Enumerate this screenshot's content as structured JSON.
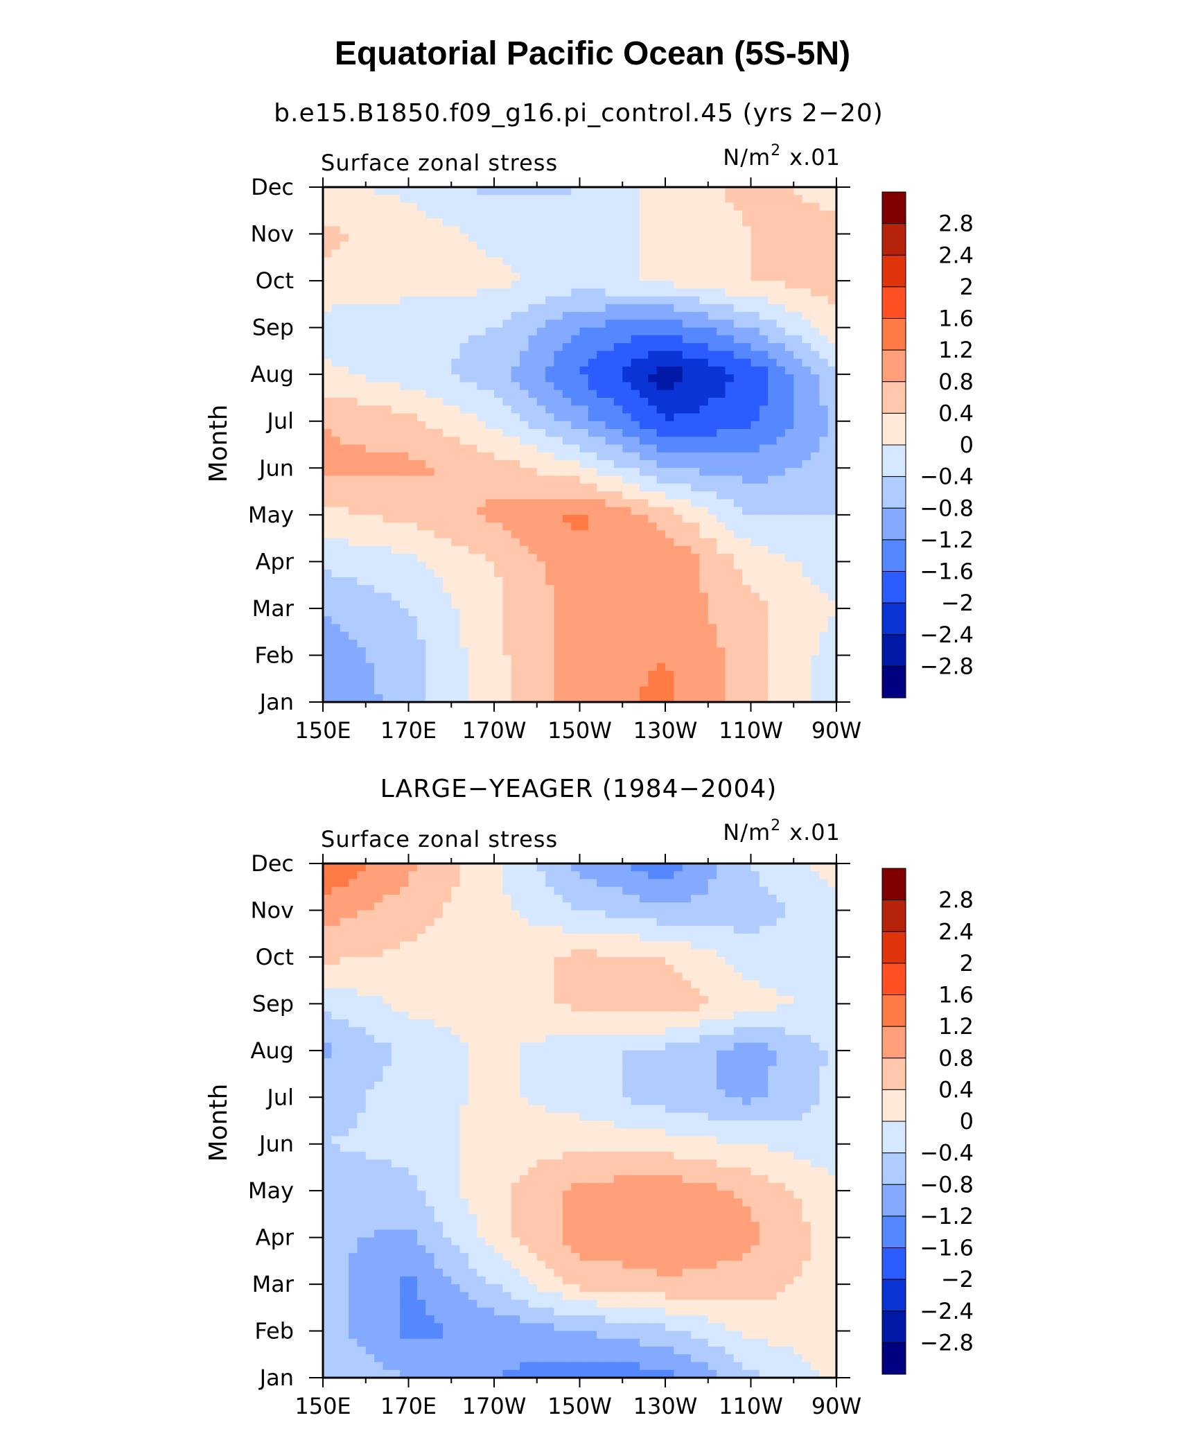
{
  "figure": {
    "title": "Equatorial Pacific Ocean (5S-5N)"
  },
  "colorbar": {
    "levels": [
      "2.8",
      "2.4",
      "2",
      "1.6",
      "1.2",
      "0.8",
      "0.4",
      "0",
      "−0.4",
      "−0.8",
      "−1.2",
      "−1.6",
      "−2",
      "−2.4",
      "−2.8"
    ],
    "colors": [
      "#800000",
      "#b5230a",
      "#e0350c",
      "#ff5024",
      "#ff7a45",
      "#ffa07a",
      "#ffc8ad",
      "#ffe9d8",
      "#d6e8ff",
      "#b0ccff",
      "#84aaff",
      "#5587ff",
      "#2a5cff",
      "#0b34d6",
      "#0019a6",
      "#000080"
    ]
  },
  "panels": [
    {
      "title": "b.e15.B1850.f09_g16.pi_control.45 (yrs 2−20)",
      "left_label": "Surface zonal stress",
      "units_label": "N/m",
      "units_sup": "2",
      "units_scale": "x.01",
      "ylabel": "Month"
    },
    {
      "title": "LARGE−YEAGER (1984−2004)",
      "left_label": "Surface zonal stress",
      "units_label": "N/m",
      "units_sup": "2",
      "units_scale": "x.01",
      "ylabel": "Month"
    }
  ],
  "axes": {
    "x_ticks": [
      "150E",
      "170E",
      "170W",
      "150W",
      "130W",
      "110W",
      "90W"
    ],
    "y_ticks": [
      "Jan",
      "Feb",
      "Mar",
      "Apr",
      "May",
      "Jun",
      "Jul",
      "Aug",
      "Sep",
      "Oct",
      "Nov",
      "Dec"
    ]
  },
  "chart_data": [
    {
      "type": "heatmap",
      "title": "b.e15.B1850.f09_g16.pi_control.45 (yrs 2−20)",
      "subtitle": "Surface zonal stress",
      "units": "N/m2 x.01",
      "ylabel": "Month",
      "x": [
        "150E",
        "170E",
        "170W",
        "150W",
        "130W",
        "110W",
        "90W"
      ],
      "y": [
        "Jan",
        "Feb",
        "Mar",
        "Apr",
        "May",
        "Jun",
        "Jul",
        "Aug",
        "Sep",
        "Oct",
        "Nov",
        "Dec"
      ],
      "values": [
        [
          -1.2,
          -0.6,
          0.2,
          1.0,
          1.3,
          0.6,
          -0.2
        ],
        [
          -1.0,
          -0.6,
          0.3,
          1.0,
          1.2,
          0.6,
          -0.2
        ],
        [
          -0.8,
          -0.4,
          0.3,
          1.0,
          1.1,
          0.5,
          0.0
        ],
        [
          -0.3,
          -0.1,
          0.4,
          1.1,
          1.2,
          0.2,
          -0.2
        ],
        [
          0.3,
          0.5,
          0.9,
          1.3,
          0.6,
          -0.4,
          -0.4
        ],
        [
          0.9,
          0.9,
          0.6,
          0.1,
          -0.8,
          -1.0,
          -0.6
        ],
        [
          0.8,
          0.5,
          -0.1,
          -1.0,
          -2.0,
          -1.7,
          -0.7
        ],
        [
          0.1,
          -0.2,
          -0.6,
          -1.6,
          -2.6,
          -1.9,
          -0.5
        ],
        [
          -0.2,
          -0.3,
          -0.4,
          -1.2,
          -1.5,
          -0.8,
          0.3
        ],
        [
          0.3,
          0.2,
          0.1,
          -0.2,
          0.1,
          0.4,
          0.6
        ],
        [
          0.5,
          0.2,
          -0.1,
          -0.3,
          0.1,
          0.4,
          0.5
        ],
        [
          0.1,
          -0.1,
          -0.5,
          -0.4,
          0.2,
          0.5,
          0.3
        ]
      ],
      "levels": [
        -2.8,
        -2.4,
        -2.0,
        -1.6,
        -1.2,
        -0.8,
        -0.4,
        0.0,
        0.4,
        0.8,
        1.2,
        1.6,
        2.0,
        2.4,
        2.8
      ]
    },
    {
      "type": "heatmap",
      "title": "LARGE−YEAGER (1984−2004)",
      "subtitle": "Surface zonal stress",
      "units": "N/m2 x.01",
      "ylabel": "Month",
      "x": [
        "150E",
        "170E",
        "170W",
        "150W",
        "130W",
        "110W",
        "90W"
      ],
      "y": [
        "Jan",
        "Feb",
        "Mar",
        "Apr",
        "May",
        "Jun",
        "Jul",
        "Aug",
        "Sep",
        "Oct",
        "Nov",
        "Dec"
      ],
      "values": [
        [
          -0.5,
          -0.8,
          -1.2,
          -1.4,
          -1.4,
          -0.5,
          0.1
        ],
        [
          -0.6,
          -1.3,
          -1.1,
          -0.8,
          -0.5,
          0.1,
          0.2
        ],
        [
          -0.6,
          -1.3,
          -0.4,
          0.5,
          0.7,
          0.6,
          0.2
        ],
        [
          -0.7,
          -0.9,
          0.2,
          1.0,
          1.2,
          0.9,
          0.2
        ],
        [
          -0.6,
          -0.5,
          0.3,
          0.9,
          1.1,
          0.7,
          0.1
        ],
        [
          -0.4,
          -0.3,
          0.2,
          0.3,
          0.2,
          0.0,
          -0.3
        ],
        [
          -0.6,
          -0.2,
          0.1,
          -0.2,
          -0.6,
          -0.9,
          -0.3
        ],
        [
          -0.9,
          -0.3,
          0.1,
          -0.3,
          -0.5,
          -1.0,
          -0.3
        ],
        [
          -0.3,
          0.1,
          0.2,
          0.5,
          0.7,
          0.2,
          -0.2
        ],
        [
          0.5,
          0.3,
          0.2,
          0.5,
          0.4,
          -0.2,
          -0.2
        ],
        [
          1.0,
          0.6,
          0.1,
          -0.4,
          -0.7,
          -0.6,
          -0.1
        ],
        [
          1.6,
          0.9,
          0.1,
          -0.9,
          -1.5,
          -0.4,
          0.2
        ]
      ],
      "levels": [
        -2.8,
        -2.4,
        -2.0,
        -1.6,
        -1.2,
        -0.8,
        -0.4,
        0.0,
        0.4,
        0.8,
        1.2,
        1.6,
        2.0,
        2.4,
        2.8
      ]
    }
  ]
}
